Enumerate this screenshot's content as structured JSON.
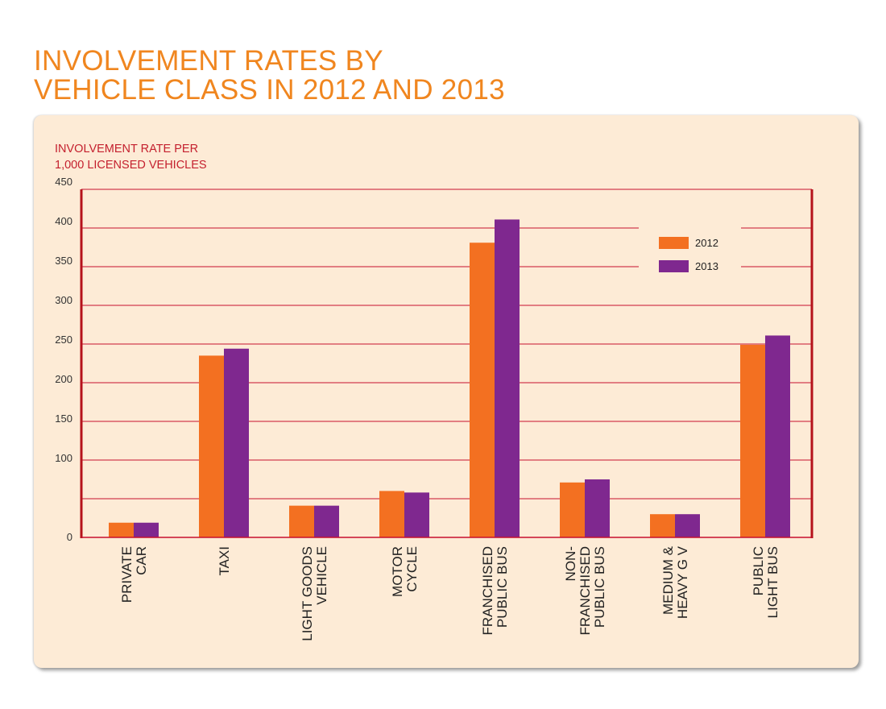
{
  "chart_data": {
    "type": "bar",
    "title": "INVOLVEMENT RATES BY VEHICLE CLASS IN 2012 AND 2013",
    "title_lines": [
      "INVOLVEMENT RATES BY",
      "VEHICLE CLASS IN 2012 AND 2013"
    ],
    "ylabel_lines": [
      "INVOLVEMENT RATE PER",
      "1,000 LICENSED VEHICLES"
    ],
    "xlabel": "",
    "ylim": [
      0,
      450
    ],
    "yticks": [
      0,
      100,
      150,
      200,
      250,
      300,
      350,
      400,
      450
    ],
    "grid": true,
    "legend_position": "top-right",
    "categories": [
      [
        "PRIVATE",
        "CAR"
      ],
      [
        "TAXI"
      ],
      [
        "LIGHT GOODS",
        "VEHICLE"
      ],
      [
        "MOTOR",
        "CYCLE"
      ],
      [
        "FRANCHISED",
        "PUBLIC BUS"
      ],
      [
        "NON-",
        "FRANCHISED",
        "PUBLIC BUS"
      ],
      [
        "MEDIUM &",
        "HEAVY G V"
      ],
      [
        "PUBLIC",
        "LIGHT BUS"
      ]
    ],
    "series": [
      {
        "name": "2012",
        "color": "#f37021",
        "values": [
          19,
          235,
          41,
          60,
          381,
          71,
          30,
          249
        ]
      },
      {
        "name": "2013",
        "color": "#7f288f",
        "values": [
          19,
          244,
          41,
          58,
          411,
          75,
          30,
          261
        ]
      }
    ],
    "colors": {
      "title": "#f0861f",
      "grid": "#c8102e",
      "background": "#fdebd6"
    }
  }
}
